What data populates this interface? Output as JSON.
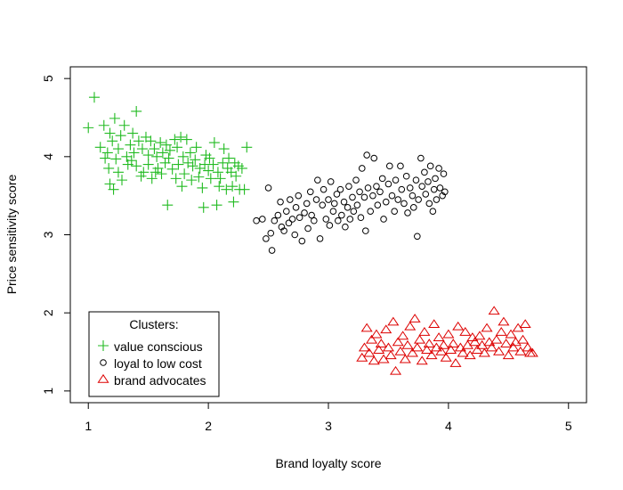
{
  "chart_data": {
    "type": "scatter",
    "title": "",
    "xlabel": "Brand loyalty score",
    "ylabel": "Price sensitivity score",
    "xlim": [
      0.85,
      5.15
    ],
    "ylim": [
      0.85,
      5.15
    ],
    "xticks": [
      1,
      2,
      3,
      4,
      5
    ],
    "yticks": [
      1,
      2,
      3,
      4,
      5
    ],
    "grid": false,
    "legend": {
      "title": "Clusters:",
      "position": "bottom-left"
    },
    "series": [
      {
        "name": "value conscious",
        "marker": "plus",
        "color": "#22bb22",
        "points": [
          [
            1.0,
            4.37
          ],
          [
            1.05,
            4.76
          ],
          [
            1.1,
            4.12
          ],
          [
            1.13,
            4.4
          ],
          [
            1.14,
            3.98
          ],
          [
            1.16,
            4.05
          ],
          [
            1.17,
            3.85
          ],
          [
            1.18,
            4.3
          ],
          [
            1.18,
            3.65
          ],
          [
            1.2,
            4.2
          ],
          [
            1.21,
            3.58
          ],
          [
            1.22,
            4.49
          ],
          [
            1.23,
            3.97
          ],
          [
            1.25,
            4.1
          ],
          [
            1.25,
            3.8
          ],
          [
            1.27,
            4.27
          ],
          [
            1.28,
            3.7
          ],
          [
            1.3,
            4.4
          ],
          [
            1.32,
            4.0
          ],
          [
            1.33,
            3.9
          ],
          [
            1.35,
            4.15
          ],
          [
            1.36,
            3.95
          ],
          [
            1.37,
            4.3
          ],
          [
            1.38,
            4.05
          ],
          [
            1.4,
            4.58
          ],
          [
            1.4,
            3.88
          ],
          [
            1.42,
            4.2
          ],
          [
            1.44,
            3.75
          ],
          [
            1.45,
            4.1
          ],
          [
            1.46,
            3.8
          ],
          [
            1.48,
            4.25
          ],
          [
            1.5,
            3.9
          ],
          [
            1.5,
            4.02
          ],
          [
            1.52,
            4.2
          ],
          [
            1.53,
            3.72
          ],
          [
            1.55,
            4.1
          ],
          [
            1.56,
            3.8
          ],
          [
            1.57,
            4.0
          ],
          [
            1.58,
            3.85
          ],
          [
            1.6,
            4.18
          ],
          [
            1.61,
            3.78
          ],
          [
            1.62,
            4.05
          ],
          [
            1.64,
            3.92
          ],
          [
            1.65,
            4.15
          ],
          [
            1.66,
            3.38
          ],
          [
            1.67,
            3.98
          ],
          [
            1.68,
            4.08
          ],
          [
            1.7,
            3.84
          ],
          [
            1.72,
            4.22
          ],
          [
            1.73,
            3.72
          ],
          [
            1.74,
            4.12
          ],
          [
            1.75,
            3.9
          ],
          [
            1.77,
            4.25
          ],
          [
            1.78,
            3.62
          ],
          [
            1.79,
            4.0
          ],
          [
            1.8,
            3.78
          ],
          [
            1.82,
            4.22
          ],
          [
            1.83,
            3.92
          ],
          [
            1.85,
            4.05
          ],
          [
            1.86,
            3.7
          ],
          [
            1.87,
            3.88
          ],
          [
            1.89,
            3.96
          ],
          [
            1.9,
            4.12
          ],
          [
            1.92,
            3.74
          ],
          [
            1.93,
            3.85
          ],
          [
            1.95,
            3.6
          ],
          [
            1.96,
            3.35
          ],
          [
            1.97,
            3.9
          ],
          [
            1.98,
            4.02
          ],
          [
            2.0,
            3.82
          ],
          [
            2.01,
            3.98
          ],
          [
            2.02,
            3.72
          ],
          [
            2.04,
            3.9
          ],
          [
            2.05,
            4.18
          ],
          [
            2.07,
            3.38
          ],
          [
            2.08,
            3.8
          ],
          [
            2.09,
            3.62
          ],
          [
            2.1,
            3.72
          ],
          [
            2.12,
            3.92
          ],
          [
            2.13,
            4.1
          ],
          [
            2.15,
            3.58
          ],
          [
            2.16,
            3.85
          ],
          [
            2.17,
            3.98
          ],
          [
            2.19,
            3.8
          ],
          [
            2.2,
            3.62
          ],
          [
            2.21,
            3.42
          ],
          [
            2.22,
            3.92
          ],
          [
            2.23,
            3.75
          ],
          [
            2.25,
            3.88
          ],
          [
            2.26,
            3.58
          ],
          [
            2.28,
            3.85
          ],
          [
            2.3,
            3.58
          ],
          [
            2.32,
            4.12
          ]
        ]
      },
      {
        "name": "loyal to low cost",
        "marker": "circle",
        "color": "#000000",
        "points": [
          [
            2.4,
            3.18
          ],
          [
            2.45,
            3.2
          ],
          [
            2.48,
            2.95
          ],
          [
            2.5,
            3.6
          ],
          [
            2.52,
            3.02
          ],
          [
            2.53,
            2.8
          ],
          [
            2.55,
            3.18
          ],
          [
            2.58,
            3.25
          ],
          [
            2.6,
            3.42
          ],
          [
            2.61,
            3.1
          ],
          [
            2.63,
            3.05
          ],
          [
            2.65,
            3.3
          ],
          [
            2.67,
            3.15
          ],
          [
            2.68,
            3.45
          ],
          [
            2.7,
            3.2
          ],
          [
            2.72,
            3.0
          ],
          [
            2.73,
            3.35
          ],
          [
            2.75,
            3.5
          ],
          [
            2.76,
            3.22
          ],
          [
            2.78,
            2.92
          ],
          [
            2.8,
            3.28
          ],
          [
            2.82,
            3.4
          ],
          [
            2.83,
            3.08
          ],
          [
            2.85,
            3.55
          ],
          [
            2.86,
            3.25
          ],
          [
            2.88,
            3.18
          ],
          [
            2.9,
            3.45
          ],
          [
            2.91,
            3.7
          ],
          [
            2.93,
            2.95
          ],
          [
            2.95,
            3.38
          ],
          [
            2.96,
            3.58
          ],
          [
            2.98,
            3.2
          ],
          [
            3.0,
            3.45
          ],
          [
            3.01,
            3.12
          ],
          [
            3.02,
            3.68
          ],
          [
            3.04,
            3.3
          ],
          [
            3.05,
            3.4
          ],
          [
            3.07,
            3.52
          ],
          [
            3.08,
            3.18
          ],
          [
            3.1,
            3.58
          ],
          [
            3.11,
            3.25
          ],
          [
            3.13,
            3.42
          ],
          [
            3.14,
            3.1
          ],
          [
            3.16,
            3.35
          ],
          [
            3.17,
            3.62
          ],
          [
            3.18,
            3.2
          ],
          [
            3.2,
            3.48
          ],
          [
            3.21,
            3.3
          ],
          [
            3.23,
            3.7
          ],
          [
            3.24,
            3.38
          ],
          [
            3.26,
            3.55
          ],
          [
            3.27,
            3.22
          ],
          [
            3.28,
            3.85
          ],
          [
            3.3,
            3.48
          ],
          [
            3.31,
            3.05
          ],
          [
            3.32,
            4.02
          ],
          [
            3.33,
            3.6
          ],
          [
            3.35,
            3.3
          ],
          [
            3.37,
            3.5
          ],
          [
            3.38,
            3.98
          ],
          [
            3.4,
            3.62
          ],
          [
            3.41,
            3.38
          ],
          [
            3.43,
            3.55
          ],
          [
            3.45,
            3.72
          ],
          [
            3.46,
            3.2
          ],
          [
            3.48,
            3.42
          ],
          [
            3.5,
            3.65
          ],
          [
            3.51,
            3.88
          ],
          [
            3.53,
            3.5
          ],
          [
            3.55,
            3.3
          ],
          [
            3.56,
            3.7
          ],
          [
            3.58,
            3.45
          ],
          [
            3.6,
            3.88
          ],
          [
            3.61,
            3.58
          ],
          [
            3.63,
            3.4
          ],
          [
            3.65,
            3.75
          ],
          [
            3.66,
            3.28
          ],
          [
            3.68,
            3.6
          ],
          [
            3.7,
            3.5
          ],
          [
            3.71,
            3.35
          ],
          [
            3.73,
            3.7
          ],
          [
            3.74,
            2.98
          ],
          [
            3.75,
            3.45
          ],
          [
            3.77,
            3.98
          ],
          [
            3.78,
            3.62
          ],
          [
            3.8,
            3.8
          ],
          [
            3.81,
            3.52
          ],
          [
            3.83,
            3.68
          ],
          [
            3.84,
            3.4
          ],
          [
            3.85,
            3.88
          ],
          [
            3.87,
            3.3
          ],
          [
            3.88,
            3.58
          ],
          [
            3.89,
            3.72
          ],
          [
            3.9,
            3.45
          ],
          [
            3.92,
            3.85
          ],
          [
            3.93,
            3.6
          ],
          [
            3.95,
            3.5
          ],
          [
            3.96,
            3.78
          ],
          [
            3.97,
            3.55
          ]
        ]
      },
      {
        "name": "brand advocates",
        "marker": "triangle",
        "color": "#dd0000",
        "points": [
          [
            3.28,
            1.42
          ],
          [
            3.3,
            1.55
          ],
          [
            3.32,
            1.8
          ],
          [
            3.34,
            1.48
          ],
          [
            3.36,
            1.65
          ],
          [
            3.38,
            1.38
          ],
          [
            3.4,
            1.72
          ],
          [
            3.42,
            1.52
          ],
          [
            3.44,
            1.6
          ],
          [
            3.46,
            1.4
          ],
          [
            3.48,
            1.78
          ],
          [
            3.5,
            1.55
          ],
          [
            3.52,
            1.45
          ],
          [
            3.54,
            1.88
          ],
          [
            3.56,
            1.25
          ],
          [
            3.58,
            1.62
          ],
          [
            3.6,
            1.5
          ],
          [
            3.62,
            1.7
          ],
          [
            3.64,
            1.4
          ],
          [
            3.66,
            1.58
          ],
          [
            3.68,
            1.82
          ],
          [
            3.7,
            1.48
          ],
          [
            3.72,
            1.92
          ],
          [
            3.74,
            1.55
          ],
          [
            3.76,
            1.65
          ],
          [
            3.78,
            1.38
          ],
          [
            3.8,
            1.75
          ],
          [
            3.82,
            1.52
          ],
          [
            3.84,
            1.6
          ],
          [
            3.86,
            1.45
          ],
          [
            3.88,
            1.85
          ],
          [
            3.9,
            1.55
          ],
          [
            3.92,
            1.68
          ],
          [
            3.94,
            1.5
          ],
          [
            3.96,
            1.58
          ],
          [
            3.98,
            1.42
          ],
          [
            4.0,
            1.72
          ],
          [
            4.02,
            1.52
          ],
          [
            4.04,
            1.6
          ],
          [
            4.06,
            1.35
          ],
          [
            4.08,
            1.82
          ],
          [
            4.1,
            1.55
          ],
          [
            4.12,
            1.48
          ],
          [
            4.14,
            1.75
          ],
          [
            4.16,
            1.58
          ],
          [
            4.18,
            1.45
          ],
          [
            4.2,
            1.68
          ],
          [
            4.22,
            1.62
          ],
          [
            4.24,
            1.52
          ],
          [
            4.26,
            1.7
          ],
          [
            4.28,
            1.58
          ],
          [
            4.3,
            1.48
          ],
          [
            4.32,
            1.8
          ],
          [
            4.34,
            1.62
          ],
          [
            4.36,
            1.55
          ],
          [
            4.38,
            2.02
          ],
          [
            4.4,
            1.65
          ],
          [
            4.42,
            1.5
          ],
          [
            4.44,
            1.75
          ],
          [
            4.46,
            1.88
          ],
          [
            4.48,
            1.6
          ],
          [
            4.5,
            1.45
          ],
          [
            4.52,
            1.72
          ],
          [
            4.54,
            1.55
          ],
          [
            4.56,
            1.62
          ],
          [
            4.58,
            1.8
          ],
          [
            4.6,
            1.5
          ],
          [
            4.62,
            1.65
          ],
          [
            4.64,
            1.85
          ],
          [
            4.66,
            1.55
          ],
          [
            4.68,
            1.48
          ],
          [
            4.7,
            1.48
          ]
        ]
      }
    ]
  }
}
